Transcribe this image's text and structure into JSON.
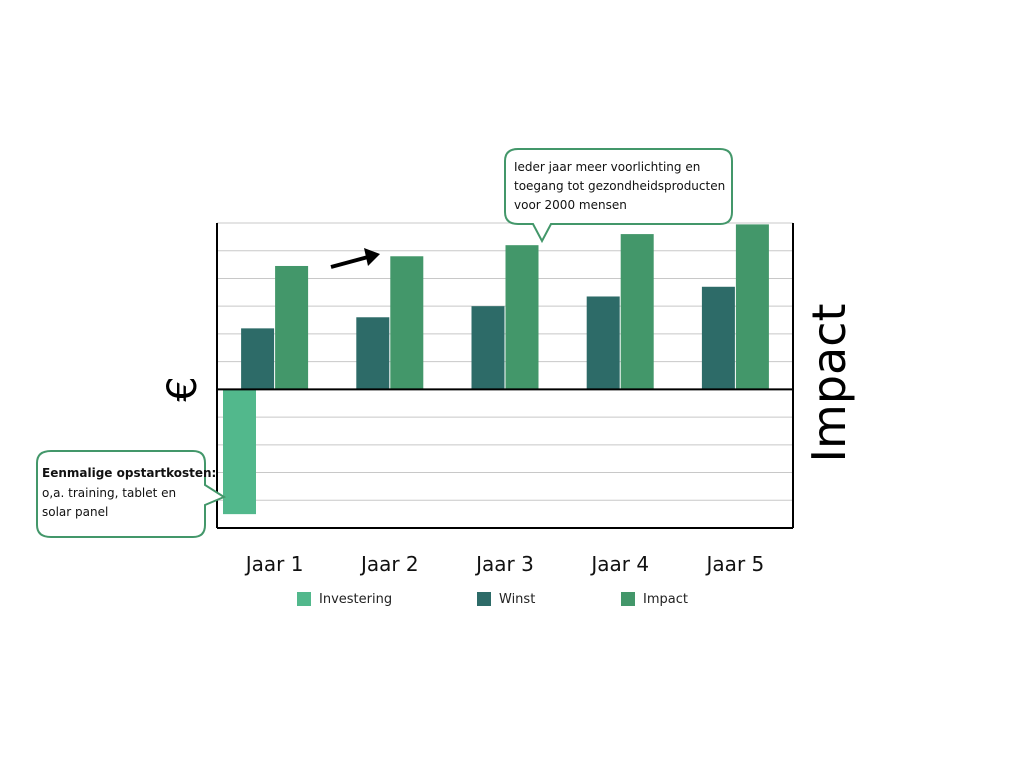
{
  "chart_data": {
    "type": "bar",
    "categories": [
      "Jaar 1",
      "Jaar 2",
      "Jaar 3",
      "Jaar 4",
      "Jaar 5"
    ],
    "series": [
      {
        "name": "Investering",
        "values": [
          -4.5,
          null,
          null,
          null,
          null
        ],
        "color": "#52b88c"
      },
      {
        "name": "Winst",
        "values": [
          2.2,
          2.6,
          3.0,
          3.35,
          3.7
        ],
        "color": "#2d6b68"
      },
      {
        "name": "Impact",
        "values": [
          4.45,
          4.8,
          5.2,
          5.6,
          5.95
        ],
        "color": "#43976a"
      }
    ],
    "ylim": [
      -5,
      6
    ],
    "y_label_left": "€",
    "y_label_right": "Impact",
    "grid": true,
    "legend_position": "bottom",
    "annotations": {
      "top_callout": [
        "Ieder jaar meer voorlichting en",
        "toegang tot gezondheidsproducten",
        "voor 2000 mensen"
      ],
      "left_callout_title": "Eenmalige opstartkosten:",
      "left_callout_lines": [
        "o,a. training, tablet en",
        "solar panel"
      ],
      "trend_arrow": "upward-arrow"
    }
  }
}
